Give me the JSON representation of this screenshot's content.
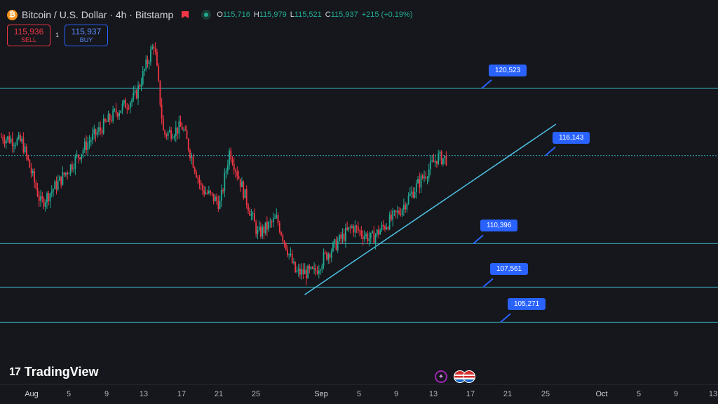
{
  "header": {
    "symbol_title": "Bitcoin / U.S. Dollar · 4h · Bitstamp",
    "coin_glyph": "₿",
    "ohlc": {
      "o_label": "O",
      "o_value": "115,716",
      "h_label": "H",
      "h_value": "115,979",
      "l_label": "L",
      "l_value": "115,521",
      "c_label": "C",
      "c_value": "115,937",
      "change": "+215 (+0.19%)"
    }
  },
  "trade": {
    "sell_price": "115,936",
    "sell_label": "SELL",
    "spread": "1",
    "buy_price": "115,937",
    "buy_label": "BUY"
  },
  "branding": {
    "logo_text": "TradingView",
    "logo_mark": "17"
  },
  "colors": {
    "background": "#15171c",
    "up": "#22ab94",
    "down": "#f23645",
    "level_line": "#3bb3c3",
    "trendline": "#4fc3e6",
    "callout": "#2962ff"
  },
  "icons": [
    "bitcoin-icon",
    "flag-icon",
    "eye-icon",
    "spark-icon",
    "us-flag-icon"
  ],
  "chart_data": {
    "type": "candlestick",
    "x_axis_labels": [
      "Aug",
      "5",
      "9",
      "13",
      "17",
      "21",
      "25",
      "Sep",
      "5",
      "9",
      "13",
      "17",
      "21",
      "25",
      "Oct",
      "5",
      "9",
      "13"
    ],
    "ylim": [
      102500,
      124000
    ],
    "grid": false,
    "horizontal_levels": [
      {
        "label": "120,523",
        "value": 120523
      },
      {
        "label": "116,143",
        "value": 116143
      },
      {
        "label": "110,396",
        "value": 110396
      },
      {
        "label": "107,561",
        "value": 107561
      },
      {
        "label": "105,271",
        "value": 105271
      }
    ],
    "trendline": {
      "start": {
        "date": "2025-08-31",
        "value": 107300
      },
      "end": {
        "date": "2025-09-25",
        "value": 118000
      }
    },
    "price_path": [
      {
        "date": "2025-07-28",
        "close": 117500
      },
      {
        "date": "2025-07-31",
        "close": 117000
      },
      {
        "date": "2025-08-02",
        "close": 113000
      },
      {
        "date": "2025-08-04",
        "close": 114500
      },
      {
        "date": "2025-08-07",
        "close": 117000
      },
      {
        "date": "2025-08-10",
        "close": 119000
      },
      {
        "date": "2025-08-12",
        "close": 120000
      },
      {
        "date": "2025-08-14",
        "close": 123500
      },
      {
        "date": "2025-08-15",
        "close": 117500
      },
      {
        "date": "2025-08-17",
        "close": 118000
      },
      {
        "date": "2025-08-19",
        "close": 114000
      },
      {
        "date": "2025-08-21",
        "close": 113000
      },
      {
        "date": "2025-08-22",
        "close": 116500
      },
      {
        "date": "2025-08-25",
        "close": 111000
      },
      {
        "date": "2025-08-27",
        "close": 112000
      },
      {
        "date": "2025-08-29",
        "close": 108500
      },
      {
        "date": "2025-08-31",
        "close": 108500
      },
      {
        "date": "2025-09-01",
        "close": 109500
      },
      {
        "date": "2025-09-04",
        "close": 111500
      },
      {
        "date": "2025-09-06",
        "close": 110700
      },
      {
        "date": "2025-09-09",
        "close": 112500
      },
      {
        "date": "2025-09-11",
        "close": 114300
      },
      {
        "date": "2025-09-13",
        "close": 116000
      },
      {
        "date": "2025-09-14",
        "close": 115937
      }
    ]
  }
}
